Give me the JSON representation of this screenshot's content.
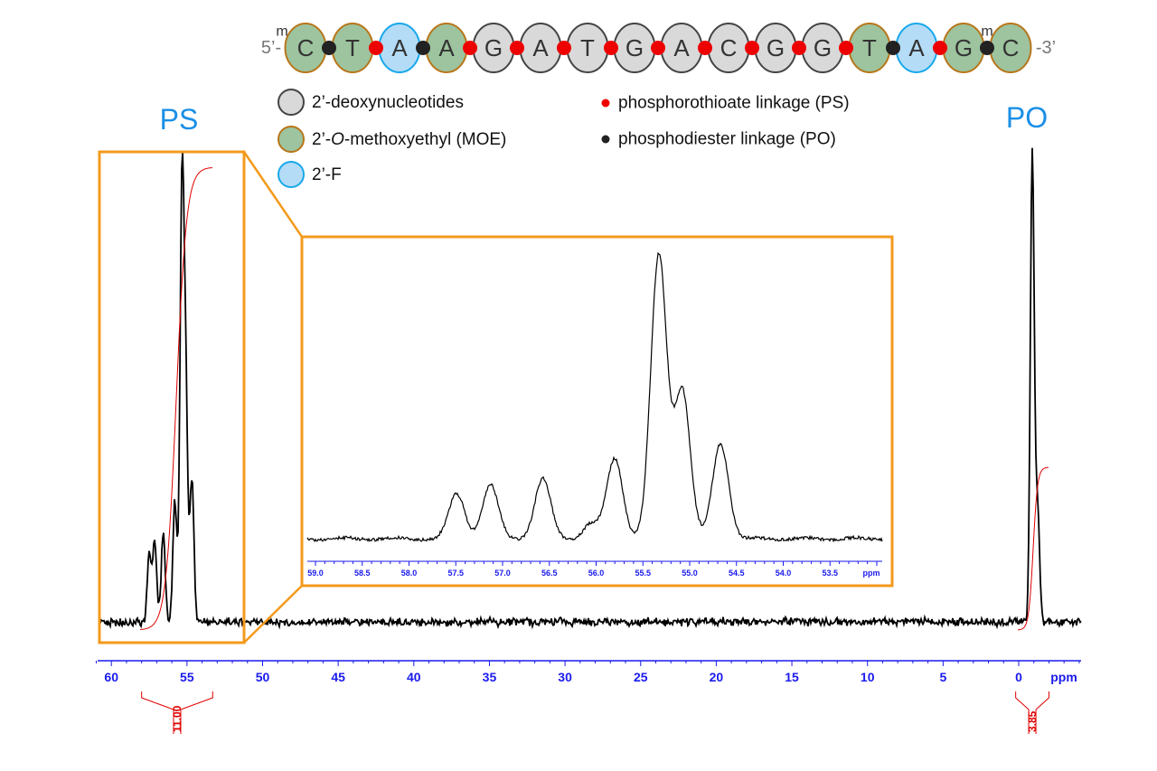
{
  "sequence": {
    "prime5": "5’-",
    "prime3": "-3’",
    "methyl_mark": "m",
    "nucleotides": [
      {
        "base": "C",
        "type": "MOE",
        "methyl": true
      },
      {
        "base": "T",
        "type": "MOE"
      },
      {
        "base": "A",
        "type": "F"
      },
      {
        "base": "A",
        "type": "MOE"
      },
      {
        "base": "G",
        "type": "DNA"
      },
      {
        "base": "A",
        "type": "DNA"
      },
      {
        "base": "T",
        "type": "DNA"
      },
      {
        "base": "G",
        "type": "DNA"
      },
      {
        "base": "A",
        "type": "DNA"
      },
      {
        "base": "C",
        "type": "DNA"
      },
      {
        "base": "G",
        "type": "DNA"
      },
      {
        "base": "G",
        "type": "DNA"
      },
      {
        "base": "T",
        "type": "MOE"
      },
      {
        "base": "A",
        "type": "F"
      },
      {
        "base": "G",
        "type": "MOE"
      },
      {
        "base": "C",
        "type": "MOE",
        "methyl": true
      }
    ],
    "linkages": [
      "PO",
      "PS",
      "PO",
      "PS",
      "PS",
      "PS",
      "PS",
      "PS",
      "PS",
      "PS",
      "PS",
      "PS",
      "PO",
      "PS",
      "PO"
    ]
  },
  "legend": {
    "items": [
      {
        "label_pre": "2’-deoxynucleotides",
        "label_italic": "",
        "label_post": "",
        "type": "DNA"
      },
      {
        "label_pre": "2’-",
        "label_italic": "O",
        "label_post": "-methoxyethyl (MOE)",
        "type": "MOE"
      },
      {
        "label_pre": "2’-F",
        "label_italic": "",
        "label_post": "",
        "type": "F"
      }
    ],
    "linkages": [
      {
        "label": "phosphorothioate linkage (PS)",
        "type": "PS"
      },
      {
        "label": "phosphodiester linkage (PO)",
        "type": "PO"
      }
    ]
  },
  "colors": {
    "DNA_fill": "#d9d9d9",
    "DNA_stroke": "#444444",
    "MOE_fill": "#9dc49f",
    "MOE_stroke": "#b8761a",
    "F_fill": "#b4dcf7",
    "F_stroke": "#18a8ea",
    "PS": "#ee0000",
    "PO": "#222222",
    "zoom_box": "#f39a1c",
    "axis": "#1a1aee",
    "integral": "#e00000",
    "region_label": "#1a8fe6"
  },
  "chart_data": [
    {
      "type": "line",
      "description_role": "main 31P spectrum",
      "xlabel": "ppm",
      "xlim": [
        61,
        -4
      ],
      "x_reversed": true,
      "x_ticks": [
        60,
        55,
        50,
        45,
        40,
        35,
        30,
        25,
        20,
        15,
        10,
        5,
        0
      ],
      "region_labels": [
        {
          "text": "PS",
          "ppm": 55.5
        },
        {
          "text": "PO",
          "ppm": -0.6
        }
      ],
      "peaks": [
        {
          "ppm": 57.49,
          "intensity": 0.15
        },
        {
          "ppm": 57.13,
          "intensity": 0.18
        },
        {
          "ppm": 56.57,
          "intensity": 0.2
        },
        {
          "ppm": 55.8,
          "intensity": 0.27
        },
        {
          "ppm": 55.33,
          "intensity": 0.95
        },
        {
          "ppm": 55.08,
          "intensity": 0.5
        },
        {
          "ppm": 54.67,
          "intensity": 0.32
        },
        {
          "ppm": -0.9,
          "intensity": 1.04
        },
        {
          "ppm": -1.25,
          "intensity": 0.25
        }
      ],
      "integrals": [
        {
          "from_ppm": 58.0,
          "to_ppm": 53.3,
          "value": "11.00"
        },
        {
          "from_ppm": 0.2,
          "to_ppm": -2.0,
          "value": "3.85"
        }
      ]
    },
    {
      "type": "line",
      "description_role": "inset expansion of PS region",
      "xlabel": "ppm",
      "xlim": [
        59.3,
        52.8
      ],
      "x_reversed": true,
      "x_ticks": [
        "59.0",
        "58.5",
        "58.0",
        "57.5",
        "57.0",
        "56.5",
        "56.0",
        "55.5",
        "55.0",
        "54.5",
        "54.0",
        "53.5"
      ],
      "peaks": [
        {
          "ppm": 57.49,
          "intensity": 0.15
        },
        {
          "ppm": 57.13,
          "intensity": 0.18
        },
        {
          "ppm": 56.57,
          "intensity": 0.2
        },
        {
          "ppm": 56.05,
          "intensity": 0.05
        },
        {
          "ppm": 55.8,
          "intensity": 0.27
        },
        {
          "ppm": 55.33,
          "intensity": 0.95
        },
        {
          "ppm": 55.08,
          "intensity": 0.5
        },
        {
          "ppm": 54.67,
          "intensity": 0.32
        }
      ]
    }
  ]
}
